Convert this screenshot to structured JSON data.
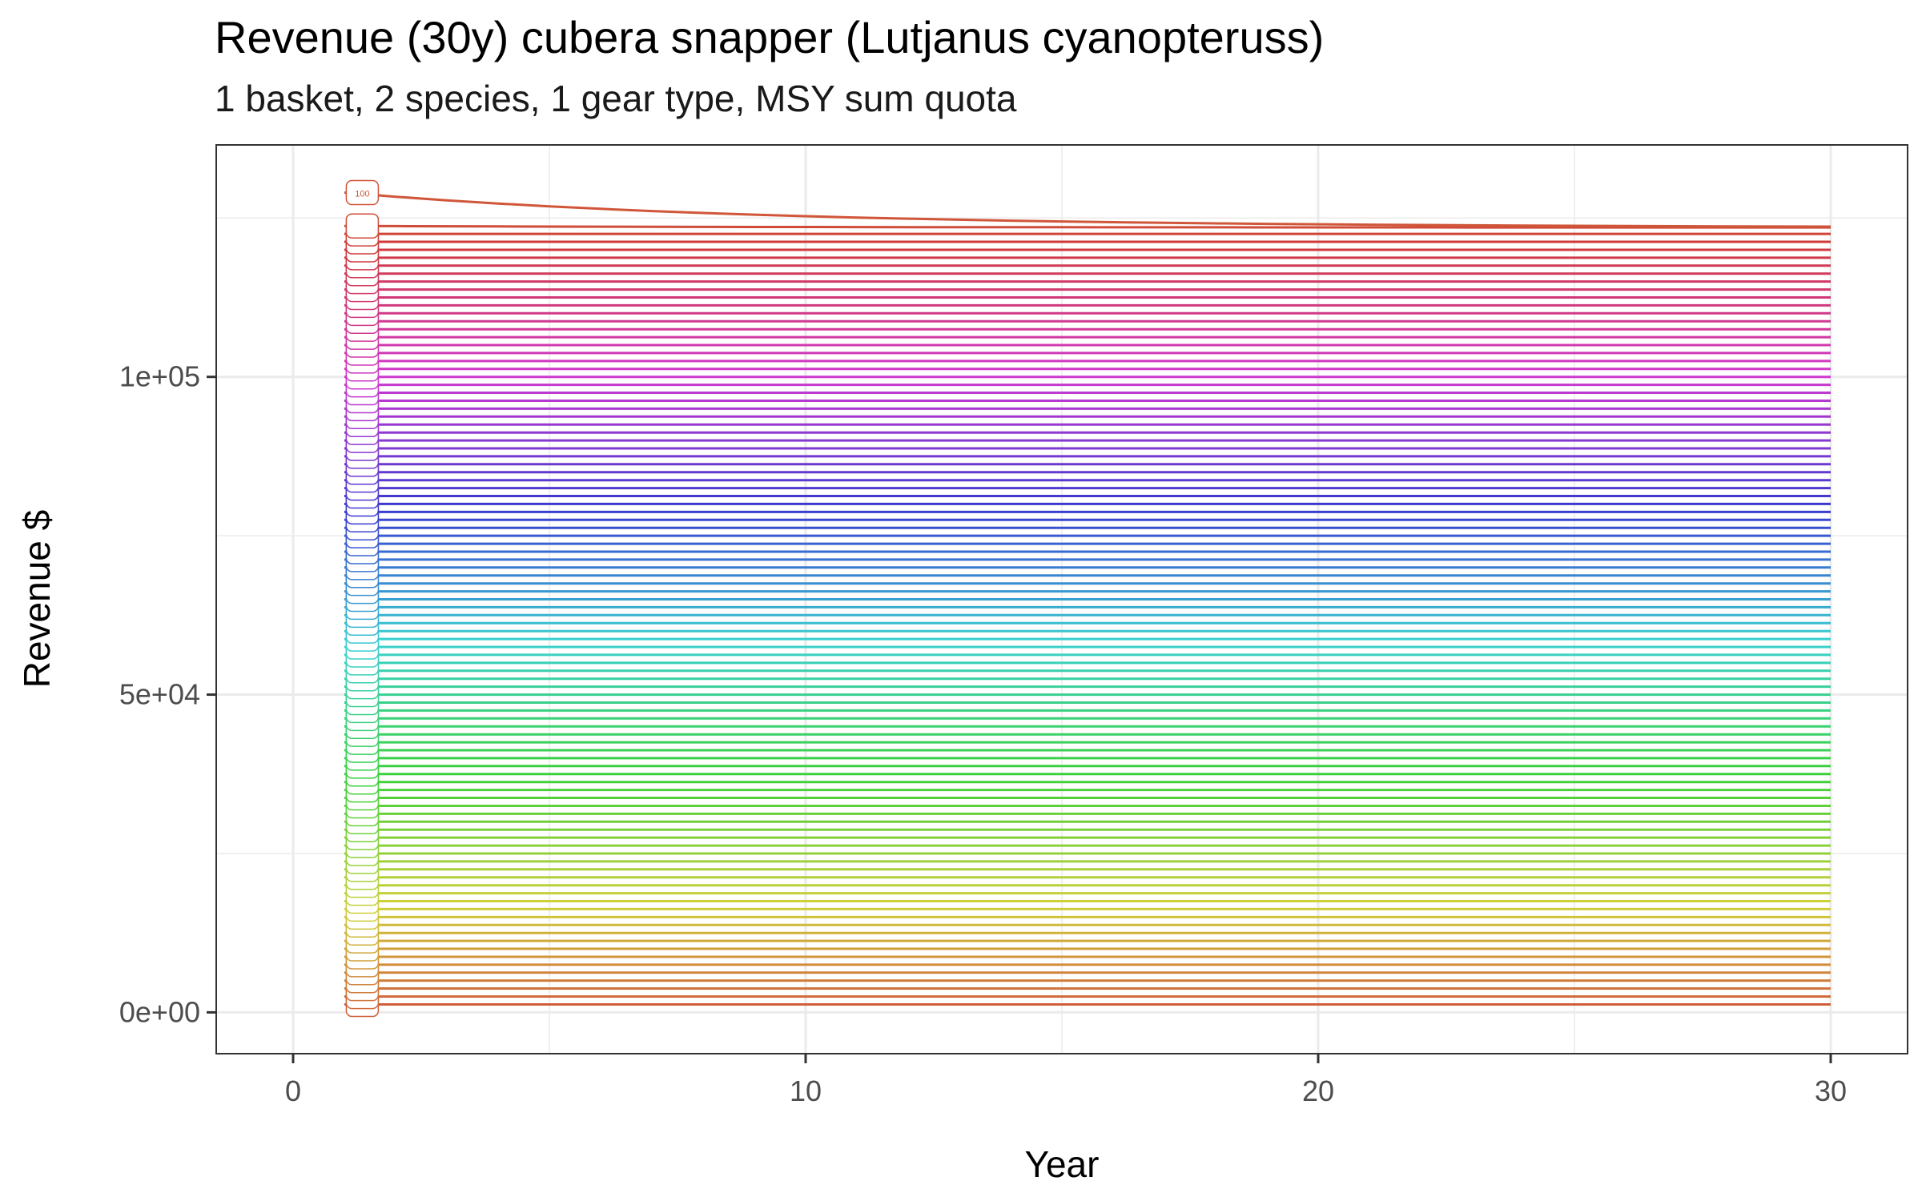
{
  "chart_data": {
    "type": "line",
    "title": "Revenue (30y) cubera snapper (Lutjanus cyanopteruss)",
    "subtitle": "1 basket, 2 species, 1 gear type, MSY sum quota",
    "xlabel": "Year",
    "ylabel": "Revenue $",
    "xlim": [
      -1.5,
      31.5
    ],
    "ylim": [
      -6500,
      136500
    ],
    "x_ticks": [
      0,
      10,
      20,
      30
    ],
    "x_tick_labels": [
      "0",
      "10",
      "20",
      "30"
    ],
    "y_ticks": [
      0,
      50000,
      100000
    ],
    "y_tick_labels": [
      "0e+00",
      "5e+04",
      "1e+05"
    ],
    "grid": true,
    "legend": "none",
    "years": [
      1,
      30
    ],
    "series_count": 100,
    "series_start_values": [
      1250,
      2500,
      3750,
      5000,
      6250,
      7500,
      8750,
      10000,
      11250,
      12500,
      13750,
      15000,
      16250,
      17500,
      18750,
      20000,
      21250,
      22500,
      23750,
      25000,
      26250,
      27500,
      28750,
      30000,
      31250,
      32500,
      33750,
      35000,
      36250,
      37500,
      38750,
      40000,
      41250,
      42500,
      43750,
      45000,
      46250,
      47500,
      48750,
      50000,
      51250,
      52500,
      53750,
      55000,
      56250,
      57500,
      58750,
      60000,
      61250,
      62500,
      63750,
      65000,
      66250,
      67500,
      68750,
      70000,
      71250,
      72500,
      73750,
      75000,
      76250,
      77500,
      78750,
      80000,
      81250,
      82500,
      83750,
      85000,
      86250,
      87500,
      88750,
      90000,
      91250,
      92500,
      93750,
      95000,
      96250,
      97500,
      98750,
      100000,
      101250,
      102500,
      103750,
      105000,
      106250,
      107500,
      108750,
      110000,
      111250,
      112500,
      113750,
      115000,
      116250,
      117500,
      118750,
      120000,
      121250,
      122500,
      123750,
      129000
    ],
    "series_end_values": [
      1250,
      2500,
      3750,
      5000,
      6250,
      7500,
      8750,
      10000,
      11250,
      12500,
      13750,
      15000,
      16250,
      17500,
      18750,
      20000,
      21250,
      22500,
      23750,
      25000,
      26250,
      27500,
      28750,
      30000,
      31250,
      32500,
      33750,
      35000,
      36250,
      37500,
      38750,
      40000,
      41250,
      42500,
      43750,
      45000,
      46250,
      47500,
      48750,
      50000,
      51250,
      52500,
      53750,
      55000,
      56250,
      57500,
      58750,
      60000,
      61250,
      62500,
      63750,
      65000,
      66250,
      67500,
      68750,
      70000,
      71250,
      72500,
      73750,
      75000,
      76250,
      77500,
      78750,
      80000,
      81250,
      82500,
      83750,
      85000,
      86250,
      87500,
      88750,
      90000,
      91250,
      92500,
      93750,
      95000,
      96250,
      97500,
      98750,
      100000,
      101250,
      102500,
      103750,
      105000,
      106250,
      107500,
      108750,
      110000,
      111250,
      112500,
      113750,
      115000,
      116250,
      117500,
      118750,
      120000,
      121250,
      122500,
      123500,
      123500
    ],
    "highlight_label": "100",
    "colors": {
      "axis": "#333333",
      "grid": "#ebebeb",
      "tick_text": "#4d4d4d",
      "palette": [
        "#f8766d",
        "#a3a500",
        "#00bf7d",
        "#00b0f6",
        "#e76bf3"
      ]
    }
  }
}
